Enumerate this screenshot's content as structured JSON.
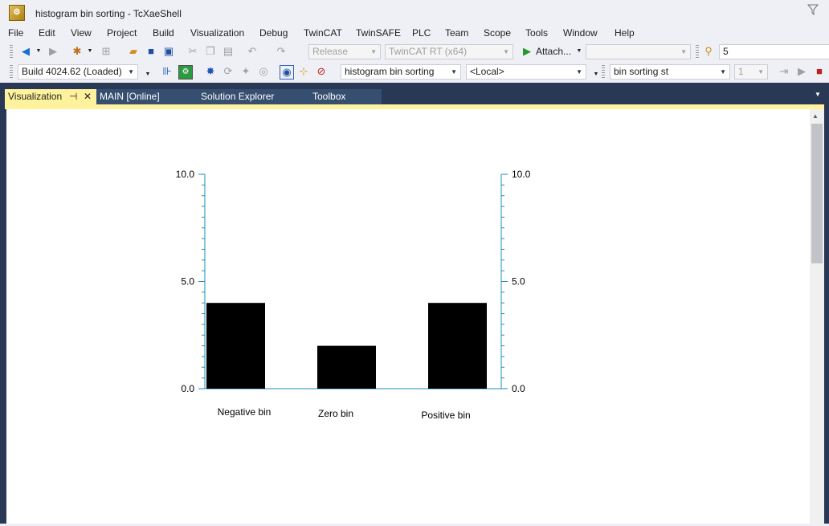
{
  "window": {
    "title": "histogram bin sorting - TcXaeShell"
  },
  "menu": [
    "File",
    "Edit",
    "View",
    "Project",
    "Build",
    "Visualization",
    "Debug",
    "TwinCAT",
    "TwinSAFE",
    "PLC",
    "Team",
    "Scope",
    "Tools",
    "Window",
    "Help"
  ],
  "toolbar1": {
    "config": "Release",
    "platform": "TwinCAT RT (x64)",
    "attach_label": "Attach...",
    "search_value": "5"
  },
  "toolbar2": {
    "build": "Build 4024.62 (Loaded)",
    "project": "histogram bin sorting",
    "target": "<Local>",
    "task": "bin sorting st",
    "number": "1"
  },
  "tabs": [
    {
      "label": "Visualization",
      "active": true
    },
    {
      "label": "MAIN [Online]",
      "active": false
    },
    {
      "label": "Solution Explorer",
      "active": false
    },
    {
      "label": "Toolbox",
      "active": false
    }
  ],
  "chart_data": {
    "type": "bar",
    "categories": [
      "Negative bin",
      "Zero bin",
      "Positive bin"
    ],
    "values": [
      4,
      2,
      4
    ],
    "ylim": [
      0,
      10
    ],
    "yticks": [
      "0.0",
      "5.0",
      "10.0"
    ],
    "bar_color": "#000000",
    "axis_color": "#1e8fb8"
  }
}
